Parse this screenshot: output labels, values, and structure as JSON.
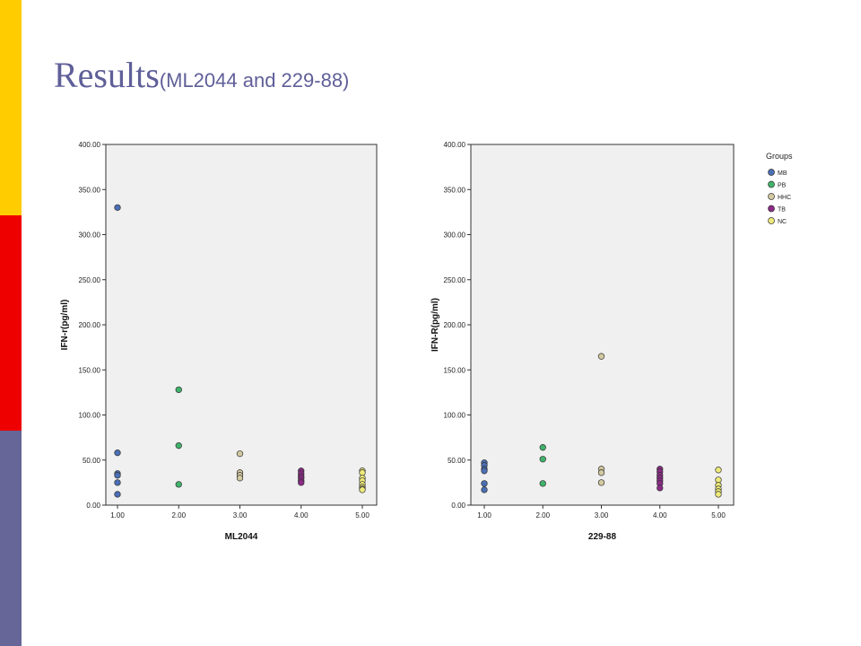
{
  "slide": {
    "title_main": "Results",
    "title_sub": "(ML2044 and 229-88)",
    "accent_colors": [
      "#ffcc00",
      "#ee0000",
      "#666699"
    ]
  },
  "chart_data": [
    {
      "type": "scatter",
      "xlabel": "ML2044",
      "ylabel": "IFN-r(pg/ml)",
      "xlim": [
        1,
        5
      ],
      "ylim": [
        0,
        400
      ],
      "x_ticks": [
        "1.00",
        "2.00",
        "3.00",
        "4.00",
        "5.00"
      ],
      "y_ticks": [
        "0.00",
        "50.00",
        "100.00",
        "150.00",
        "200.00",
        "250.00",
        "300.00",
        "350.00",
        "400.00"
      ],
      "grid": false,
      "series": [
        {
          "name": "MB",
          "color": "#4a6fb5",
          "x": [
            1,
            1,
            1,
            1,
            1,
            1
          ],
          "y": [
            330,
            58,
            35,
            33,
            25,
            12
          ]
        },
        {
          "name": "PB",
          "color": "#3fb36a",
          "x": [
            2,
            2,
            2
          ],
          "y": [
            128,
            66,
            23
          ]
        },
        {
          "name": "HHC",
          "color": "#d2c9a0",
          "x": [
            3,
            3,
            3,
            3
          ],
          "y": [
            57,
            36,
            33,
            30
          ]
        },
        {
          "name": "TB",
          "color": "#8b2a86",
          "x": [
            4,
            4,
            4,
            4,
            4,
            4
          ],
          "y": [
            38,
            35,
            32,
            30,
            27,
            25
          ]
        },
        {
          "name": "NC",
          "color": "#eeea7a",
          "x": [
            5,
            5,
            5,
            5,
            5,
            5,
            5,
            5
          ],
          "y": [
            38,
            36,
            30,
            27,
            23,
            20,
            18,
            17
          ]
        }
      ]
    },
    {
      "type": "scatter",
      "xlabel": "229-88",
      "ylabel": "IFN-R(pg/ml)",
      "xlim": [
        1,
        5
      ],
      "ylim": [
        0,
        400
      ],
      "x_ticks": [
        "1.00",
        "2.00",
        "3.00",
        "4.00",
        "5.00"
      ],
      "y_ticks": [
        "0.00",
        "50.00",
        "100.00",
        "150.00",
        "200.00",
        "250.00",
        "300.00",
        "350.00",
        "400.00"
      ],
      "grid": false,
      "legend": {
        "title": "Groups",
        "placement": "top-right",
        "entries": [
          "MB",
          "PB",
          "HHC",
          "TB",
          "NC"
        ]
      },
      "series": [
        {
          "name": "MB",
          "color": "#4a6fb5",
          "x": [
            1,
            1,
            1,
            1,
            1,
            1
          ],
          "y": [
            47,
            44,
            40,
            38,
            24,
            17
          ]
        },
        {
          "name": "PB",
          "color": "#3fb36a",
          "x": [
            2,
            2,
            2
          ],
          "y": [
            64,
            51,
            24
          ]
        },
        {
          "name": "HHC",
          "color": "#d2c9a0",
          "x": [
            3,
            3,
            3,
            3
          ],
          "y": [
            165,
            40,
            36,
            25
          ]
        },
        {
          "name": "TB",
          "color": "#8b2a86",
          "x": [
            4,
            4,
            4,
            4,
            4,
            4,
            4
          ],
          "y": [
            40,
            37,
            33,
            30,
            27,
            24,
            19
          ]
        },
        {
          "name": "NC",
          "color": "#eeea7a",
          "x": [
            5,
            5,
            5,
            5,
            5,
            5
          ],
          "y": [
            39,
            28,
            22,
            18,
            15,
            12
          ]
        }
      ]
    }
  ]
}
